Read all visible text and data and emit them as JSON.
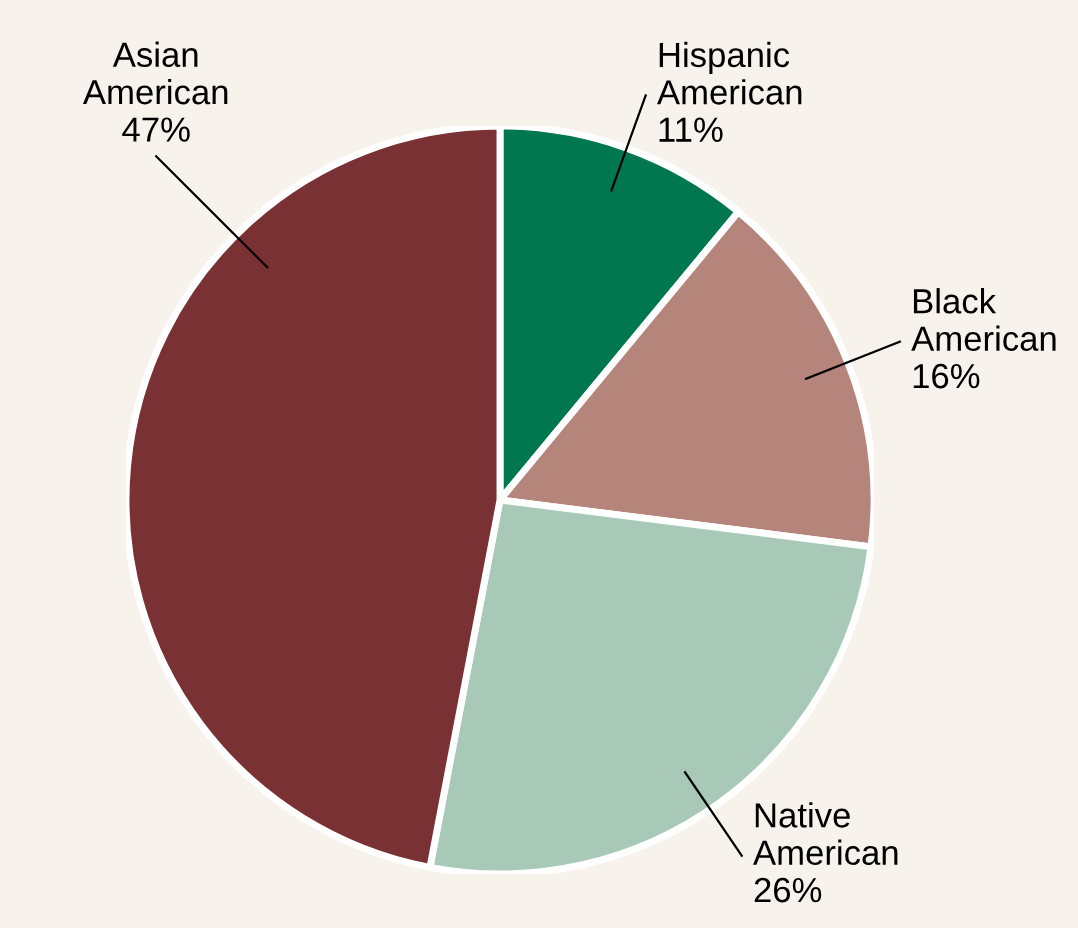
{
  "chart_data": {
    "type": "pie",
    "categories": [
      "Hispanic American",
      "Black American",
      "Native American",
      "Asian American"
    ],
    "values": [
      11,
      16,
      26,
      47
    ],
    "colors": [
      "#00774f",
      "#b5857c",
      "#a8c8b8",
      "#7a3133"
    ],
    "value_labels": [
      "11%",
      "16%",
      "26%",
      "47%"
    ]
  }
}
